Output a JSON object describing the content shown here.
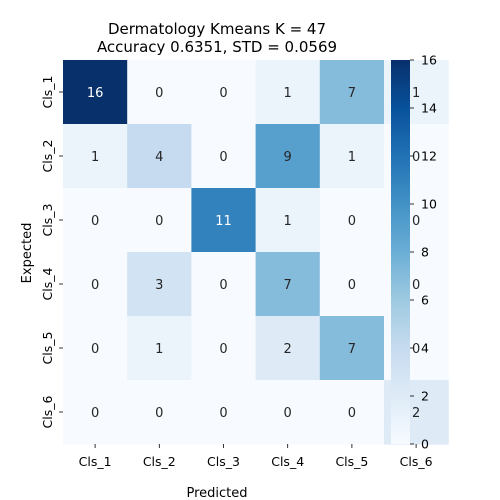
{
  "chart_data": {
    "type": "heatmap",
    "title_line1": "Dermatology Kmeans K = 47",
    "title_line2": "Accuracy 0.6351, STD = 0.0569",
    "xlabel": "Predicted",
    "ylabel": "Expected",
    "x_categories": [
      "Cls_1",
      "Cls_2",
      "Cls_3",
      "Cls_4",
      "Cls_5",
      "Cls_6"
    ],
    "y_categories": [
      "Cls_1",
      "Cls_2",
      "Cls_3",
      "Cls_4",
      "Cls_5",
      "Cls_6"
    ],
    "matrix": [
      [
        16,
        0,
        0,
        1,
        7,
        1
      ],
      [
        1,
        4,
        0,
        9,
        1,
        0
      ],
      [
        0,
        0,
        11,
        1,
        0,
        0
      ],
      [
        0,
        3,
        0,
        7,
        0,
        0
      ],
      [
        0,
        1,
        0,
        2,
        7,
        0
      ],
      [
        0,
        0,
        0,
        0,
        0,
        2
      ]
    ],
    "colorbar": {
      "range": [
        0,
        16
      ],
      "ticks": [
        "0",
        "2",
        "4",
        "6",
        "8",
        "10",
        "12",
        "14",
        "16"
      ],
      "colormap": "Blues",
      "low_color": "#f7fbff",
      "high_color": "#08306b"
    }
  }
}
